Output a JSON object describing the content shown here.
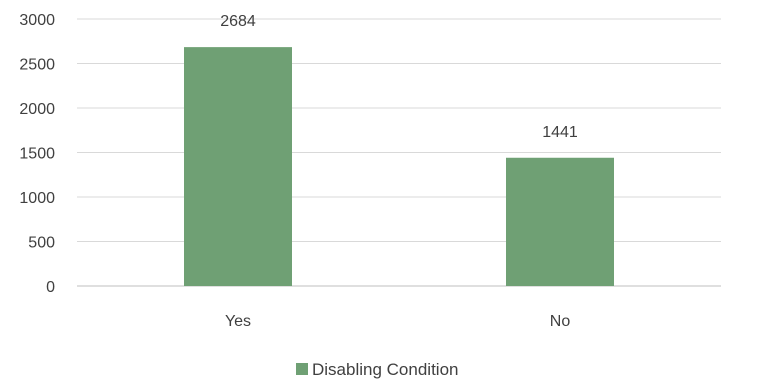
{
  "chart_data": {
    "type": "bar",
    "categories": [
      "Yes",
      "No"
    ],
    "series": [
      {
        "name": "Disabling Condition",
        "values": [
          2684,
          1441
        ],
        "color": "#6FA074"
      }
    ],
    "data_labels": [
      "2684",
      "1441"
    ],
    "ylim": [
      0,
      3000
    ],
    "yticks": [
      0,
      500,
      1000,
      1500,
      2000,
      2500,
      3000
    ],
    "ytick_labels": [
      "0",
      "500",
      "1000",
      "1500",
      "2000",
      "2500",
      "3000"
    ],
    "grid": true,
    "legend": "bottom",
    "title": "",
    "xlabel": "",
    "ylabel": ""
  }
}
